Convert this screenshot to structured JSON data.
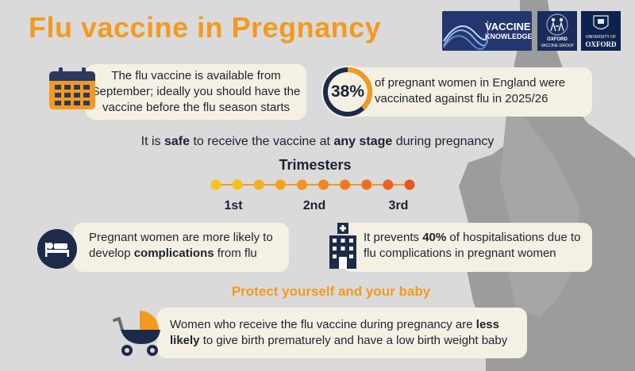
{
  "title": "Flu vaccine in Pregnancy",
  "logos": {
    "vk_line1": "VACCINE",
    "vk_line2": "KNOWLEDGE",
    "ovg_line1": "OXFORD",
    "ovg_line2": "VACCINE GROUP",
    "uo_line1": "UNIVERSITY OF",
    "uo_line2": "OXFORD"
  },
  "availability": {
    "line1": "The flu vaccine is available from",
    "line2": "September; ideally you should have the",
    "line3": "vaccine before the flu season starts"
  },
  "stat": {
    "value": "38%",
    "line1": "of pregnant women in England were",
    "line2": "vaccinated against flu in 2025/26",
    "ring_fraction": 0.38
  },
  "safe": {
    "pre": "It is ",
    "bold1": "safe",
    "mid": " to receive the vaccine at ",
    "bold2": "any stage",
    "post": " during pregnancy"
  },
  "trimesters": {
    "title": "Trimesters",
    "labels": [
      "1st",
      "2nd",
      "3rd"
    ],
    "dot_colors": [
      "#f5c518",
      "#f5c018",
      "#f3b01e",
      "#f3a21e",
      "#f2941e",
      "#f1871e",
      "#f07a1e",
      "#ef6d1e",
      "#ee601e",
      "#ec541e"
    ]
  },
  "complications": {
    "line1": "Pregnant women are more likely to",
    "pre2": "develop ",
    "bold": "complications",
    "post2": " from flu"
  },
  "hospitalisations": {
    "pre1": "It prevents ",
    "bold": "40%",
    "post1": " of hospitalisations due to",
    "line2": "flu complications in pregnant women"
  },
  "protect": "Protect yourself and your baby",
  "birth": {
    "pre1": "Women who receive the flu vaccine during pregnancy are ",
    "bold1": "less",
    "bold2": "likely",
    "post2": " to give birth prematurely and have a low birth weight baby"
  },
  "icons": [
    "calendar-icon",
    "bed-icon",
    "hospital-icon",
    "pram-icon"
  ],
  "colors": {
    "orange": "#f39a1e",
    "navy": "#1d2a4a",
    "card": "#f4f1e4",
    "background": "#dadada",
    "silhouette": "#9c9c9c"
  }
}
